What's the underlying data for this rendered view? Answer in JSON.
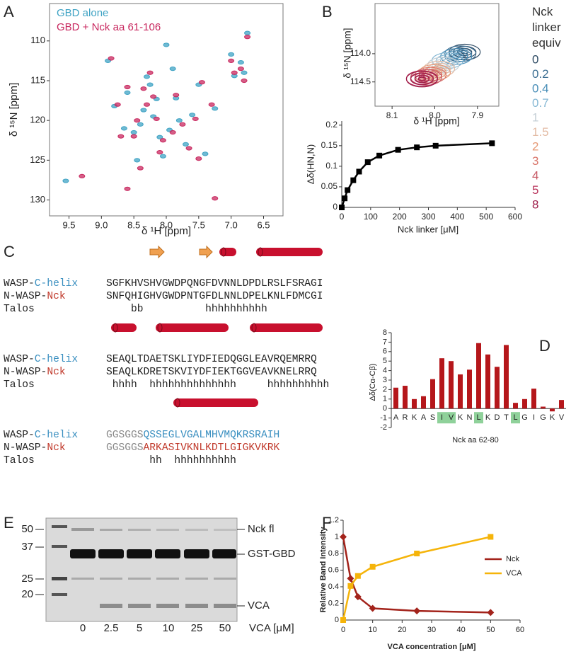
{
  "panel_labels": [
    "A",
    "B",
    "C",
    "D",
    "E",
    "F"
  ],
  "chart_data": [
    {
      "type": "scatter",
      "x_label": "δ ¹H [ppm]",
      "y_label": "δ ¹⁵N [ppm]",
      "xlim": [
        9.8,
        6.2
      ],
      "ylim": [
        132,
        105.3
      ],
      "xticks": [
        9.5,
        {
          "value": 9,
          "label": "9.0"
        },
        8.5,
        {
          "value": 8,
          "label": "8.0"
        },
        7.5,
        {
          "value": 7,
          "label": "7.0"
        },
        6.5
      ],
      "yticks": [
        110,
        115,
        120,
        125,
        130
      ],
      "legend": "upper left",
      "series": [
        {
          "name": "GBD alone",
          "color": "#3fa3c4",
          "x": [
            9.55,
            8.9,
            8.8,
            8.6,
            8.5,
            8.4,
            8.35,
            8.3,
            8.2,
            8.15,
            8.1,
            8.05,
            8.0,
            7.95,
            7.85,
            7.8,
            7.7,
            7.6,
            7.5,
            7.4,
            7.25,
            7.0,
            6.95,
            6.85,
            6.75,
            6.8,
            8.65,
            8.45,
            8.25,
            7.9
          ],
          "values": [
            127.6,
            112.5,
            118.2,
            116.5,
            121.5,
            120.5,
            118.7,
            114.5,
            119.5,
            117.3,
            122.1,
            124.5,
            110.5,
            121.2,
            117.2,
            120.0,
            123.0,
            119.3,
            115.5,
            124.2,
            118.5,
            111.7,
            114.4,
            112.7,
            109.0,
            114.0,
            121.0,
            125.0,
            115.5,
            113.5
          ]
        },
        {
          "name": "GBD + Nck aa 61-106",
          "color": "#c8285f",
          "x": [
            9.3,
            8.85,
            8.75,
            8.6,
            8.5,
            8.45,
            8.3,
            8.25,
            8.15,
            8.2,
            8.05,
            8.1,
            8.6,
            7.9,
            7.85,
            7.75,
            7.65,
            7.55,
            7.45,
            7.5,
            7.3,
            7.0,
            6.95,
            6.85,
            6.75,
            6.8,
            8.7,
            8.4,
            8.35,
            7.25
          ],
          "values": [
            127.0,
            112.2,
            118.0,
            115.8,
            122.0,
            120.0,
            118.0,
            114.0,
            119.8,
            117.0,
            122.5,
            124.0,
            128.6,
            121.5,
            116.8,
            120.5,
            123.5,
            119.8,
            115.2,
            124.8,
            118.0,
            112.5,
            114.0,
            113.5,
            109.5,
            115.0,
            122.0,
            126.0,
            116.0,
            129.8
          ]
        }
      ]
    },
    {
      "type": "contour",
      "x_label": "δ ¹H [ppm]",
      "y_label": "δ ¹⁵N [ppm]",
      "xlim": [
        8.14,
        7.85
      ],
      "ylim": [
        114.93,
        113.11
      ],
      "xticks": [
        8.1,
        {
          "value": 8,
          "label": "8.0"
        },
        7.9
      ],
      "yticks": [
        {
          "value": 114,
          "label": "114.0"
        },
        114.5
      ],
      "legend_title": "Nck linker equiv",
      "series": [
        {
          "name": "0",
          "color": "#2d4a63",
          "x": [
            7.93
          ],
          "values": [
            113.97
          ]
        },
        {
          "name": "0.2",
          "color": "#3d6f93",
          "x": [
            7.94
          ],
          "values": [
            114.0
          ]
        },
        {
          "name": "0.4",
          "color": "#4a8fb8",
          "x": [
            7.95
          ],
          "values": [
            114.05
          ]
        },
        {
          "name": "0.7",
          "color": "#86b8d4",
          "x": [
            7.97
          ],
          "values": [
            114.12
          ]
        },
        {
          "name": "1",
          "color": "#c4cfd6",
          "x": [
            7.98
          ],
          "values": [
            114.2
          ]
        },
        {
          "name": "1.5",
          "color": "#e3bba4",
          "x": [
            7.99
          ],
          "values": [
            114.27
          ]
        },
        {
          "name": "2",
          "color": "#e69a76",
          "x": [
            8.0
          ],
          "values": [
            114.33
          ]
        },
        {
          "name": "3",
          "color": "#d9756a",
          "x": [
            8.01
          ],
          "values": [
            114.38
          ]
        },
        {
          "name": "4",
          "color": "#c75a66",
          "x": [
            8.02
          ],
          "values": [
            114.42
          ]
        },
        {
          "name": "5",
          "color": "#b8325a",
          "x": [
            8.03
          ],
          "values": [
            114.44
          ]
        },
        {
          "name": "8",
          "color": "#9e1d4a",
          "x": [
            8.03
          ],
          "values": [
            114.45
          ]
        }
      ]
    },
    {
      "type": "line",
      "x_label": "Nck linker [μM]",
      "y_label": "Δδ(HN,N)",
      "xlim": [
        0,
        600
      ],
      "ylim": [
        0,
        0.21
      ],
      "xticks": [
        0,
        100,
        200,
        300,
        400,
        500,
        600
      ],
      "yticks": [
        0,
        0.05,
        0.1,
        0.15,
        0.2
      ],
      "color": "#000000",
      "x": [
        0,
        10,
        20,
        40,
        60,
        90,
        130,
        195,
        260,
        325,
        520
      ],
      "values": [
        0,
        0.022,
        0.042,
        0.066,
        0.087,
        0.11,
        0.126,
        0.14,
        0.146,
        0.15,
        0.156
      ]
    },
    {
      "type": "bar",
      "x_label": "Nck aa 62-80",
      "y_label": "Δδ(Cα-Cβ)",
      "ylim": [
        -2,
        8
      ],
      "yticks": [
        -2,
        -1,
        0,
        1,
        2,
        3,
        4,
        5,
        6,
        7,
        8
      ],
      "categories": [
        "A",
        "R",
        "K",
        "A",
        "S",
        "I",
        "V",
        "K",
        "N",
        "L",
        "K",
        "D",
        "T",
        "L",
        "G",
        "I",
        "G",
        "K",
        "V"
      ],
      "values": [
        2.2,
        2.4,
        1,
        1.3,
        3.1,
        5.3,
        5,
        3.6,
        4.1,
        6.9,
        5.7,
        4.4,
        6.7,
        0.6,
        1,
        2.1,
        0.2,
        -0.3,
        0.9
      ],
      "highlighted": [
        false,
        false,
        false,
        false,
        false,
        true,
        true,
        false,
        false,
        true,
        false,
        false,
        false,
        true,
        false,
        false,
        false,
        false,
        false
      ],
      "color": "#b5171b",
      "highlight_color": "#8fd19a"
    },
    {
      "type": "line",
      "x_label": "VCA concentration [μM]",
      "y_label": "Relative Band Intensity",
      "xlim": [
        0,
        60
      ],
      "ylim": [
        0,
        1.2
      ],
      "xticks": [
        0,
        10,
        20,
        30,
        40,
        50,
        60
      ],
      "yticks": [
        0,
        0.2,
        0.4,
        0.6,
        0.8,
        1,
        1.2
      ],
      "legend": "right",
      "x": [
        0,
        2.5,
        5,
        10,
        25,
        50
      ],
      "series": [
        {
          "name": "Nck",
          "color": "#a3231b",
          "marker": "diamond",
          "values": [
            1,
            0.5,
            0.28,
            0.14,
            0.11,
            0.09
          ]
        },
        {
          "name": "VCA",
          "color": "#f5b40a",
          "marker": "square",
          "values": [
            0,
            0.41,
            0.53,
            0.64,
            0.8,
            1
          ]
        }
      ]
    }
  ],
  "alignment": {
    "row_labels": [
      [
        "WASP-",
        "C-helix"
      ],
      [
        "N-WASP-",
        "Nck"
      ],
      [
        "Talos"
      ]
    ],
    "blocks": [
      [
        [
          "SGFKHVSHVGWDPQNGFDVNNLDPDLRSLFSRAGI"
        ],
        [
          "SNFQHIGHVGWDPNTGFDLNNLDPELKNLFDMCGI"
        ],
        [
          "    bb          hhhhhhhhhh"
        ]
      ],
      [
        [
          "SEAQLTDAETSKLIYDFIEDQGGLEAVRQEMRRQ"
        ],
        [
          "SEAQLKDRETSKVIYDFIEKTGGVEAVKNELRRQ"
        ],
        [
          " hhhh  hhhhhhhhhhhhhh     hhhhhhhhhh"
        ]
      ],
      [
        [
          "GGSGGS",
          "QSSEGLVGALMHVMQKRSRAIH"
        ],
        [
          "GGSGGS",
          "ARKASIVKNLKDTLGIGKVKRK"
        ],
        [
          "       hh  hhhhhhhhhh"
        ]
      ]
    ]
  },
  "gel": {
    "ladder_labels": [
      "50",
      "37",
      "25",
      "20"
    ],
    "band_labels": [
      "Nck fl",
      "GST-GBD",
      "VCA"
    ],
    "lane_labels": [
      "0",
      "2.5",
      "5",
      "10",
      "25",
      "50"
    ],
    "unit_label": "VCA [μM]"
  }
}
